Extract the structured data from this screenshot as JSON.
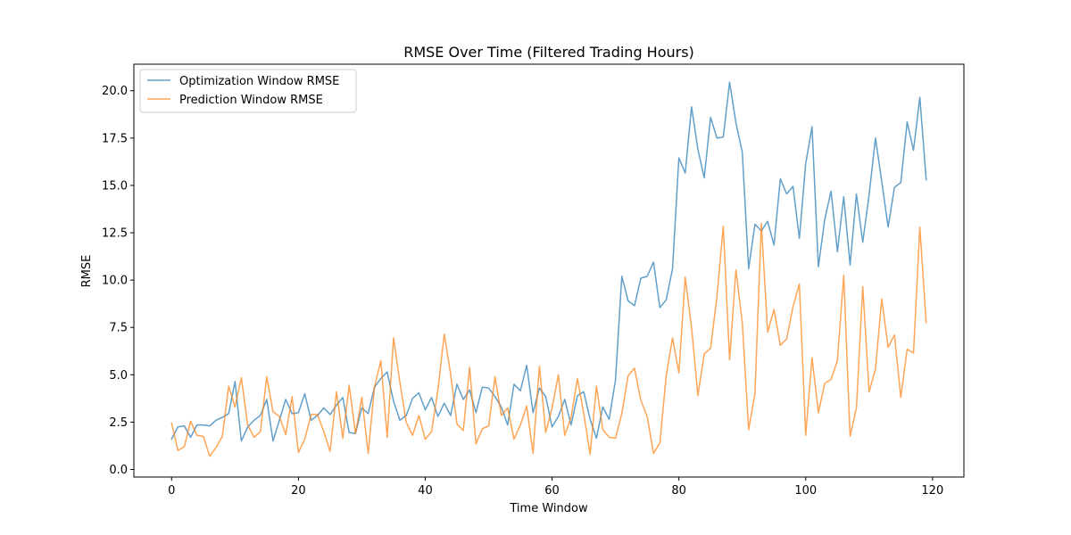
{
  "chart_data": {
    "type": "line",
    "title": "RMSE Over Time (Filtered Trading Hours)",
    "xlabel": "Time Window",
    "ylabel": "RMSE",
    "xlim": [
      -5.95,
      124.95
    ],
    "ylim": [
      -0.4,
      21.4
    ],
    "xticks": [
      0,
      20,
      40,
      60,
      80,
      100,
      120
    ],
    "yticks": [
      0.0,
      2.5,
      5.0,
      7.5,
      10.0,
      12.5,
      15.0,
      17.5,
      20.0
    ],
    "ytick_labels": [
      "0.0",
      "2.5",
      "5.0",
      "7.5",
      "10.0",
      "12.5",
      "15.0",
      "17.5",
      "20.0"
    ],
    "grid": false,
    "legend_position": "top-left",
    "x": [
      0,
      1,
      2,
      3,
      4,
      5,
      6,
      7,
      8,
      9,
      10,
      11,
      12,
      13,
      14,
      15,
      16,
      17,
      18,
      19,
      20,
      21,
      22,
      23,
      24,
      25,
      26,
      27,
      28,
      29,
      30,
      31,
      32,
      33,
      34,
      35,
      36,
      37,
      38,
      39,
      40,
      41,
      42,
      43,
      44,
      45,
      46,
      47,
      48,
      49,
      50,
      51,
      52,
      53,
      54,
      55,
      56,
      57,
      58,
      59,
      60,
      61,
      62,
      63,
      64,
      65,
      66,
      67,
      68,
      69,
      70,
      71,
      72,
      73,
      74,
      75,
      76,
      77,
      78,
      79,
      80,
      81,
      82,
      83,
      84,
      85,
      86,
      87,
      88,
      89,
      90,
      91,
      92,
      93,
      94,
      95,
      96,
      97,
      98,
      99,
      100,
      101,
      102,
      103,
      104,
      105,
      106,
      107,
      108,
      109,
      110,
      111,
      112,
      113,
      114,
      115,
      116,
      117,
      118,
      119
    ],
    "series": [
      {
        "name": "Optimization Window RMSE",
        "color": "#1f77b4",
        "values": [
          1.6,
          2.25,
          2.3,
          1.7,
          2.35,
          2.35,
          2.3,
          2.6,
          2.75,
          2.95,
          4.65,
          1.5,
          2.25,
          2.6,
          2.85,
          3.7,
          1.5,
          2.6,
          3.7,
          2.95,
          3.0,
          4.0,
          2.6,
          2.85,
          3.25,
          2.9,
          3.4,
          3.8,
          1.95,
          1.9,
          3.25,
          2.95,
          4.35,
          4.8,
          5.15,
          3.6,
          2.6,
          2.85,
          3.75,
          4.05,
          3.15,
          3.8,
          2.8,
          3.5,
          2.85,
          4.5,
          3.7,
          4.2,
          3.0,
          4.35,
          4.3,
          3.85,
          3.3,
          2.35,
          4.5,
          4.15,
          5.5,
          3.0,
          4.3,
          3.85,
          2.25,
          2.8,
          3.7,
          2.35,
          3.9,
          4.1,
          2.65,
          1.65,
          3.3,
          2.65,
          4.7,
          10.2,
          8.9,
          8.65,
          10.1,
          10.2,
          10.95,
          8.55,
          8.95,
          10.6,
          16.45,
          15.65,
          19.15,
          16.9,
          15.4,
          18.6,
          17.5,
          17.55,
          20.45,
          18.3,
          16.75,
          10.6,
          12.95,
          12.6,
          13.1,
          11.85,
          15.35,
          14.55,
          14.95,
          12.2,
          16.15,
          18.1,
          10.7,
          13.2,
          14.7,
          11.5,
          14.4,
          10.8,
          14.55,
          12.0,
          14.5,
          17.5,
          15.2,
          12.8,
          14.9,
          15.15,
          18.35,
          16.85,
          19.65,
          15.3
        ]
      },
      {
        "name": "Prediction Window RMSE",
        "color": "#ff7f0e",
        "values": [
          2.45,
          1.0,
          1.2,
          2.55,
          1.8,
          1.75,
          0.7,
          1.15,
          1.75,
          4.4,
          3.3,
          4.85,
          2.35,
          1.7,
          2.0,
          4.9,
          3.05,
          2.8,
          1.85,
          3.85,
          0.9,
          1.6,
          2.9,
          2.9,
          2.0,
          0.95,
          4.1,
          1.65,
          4.45,
          1.9,
          3.8,
          0.85,
          4.35,
          5.75,
          1.7,
          6.95,
          4.6,
          2.5,
          1.8,
          2.85,
          1.6,
          2.0,
          4.2,
          7.15,
          5.05,
          2.4,
          2.05,
          5.4,
          1.35,
          2.15,
          2.3,
          4.9,
          2.85,
          3.25,
          1.6,
          2.35,
          3.35,
          0.85,
          5.45,
          1.95,
          3.25,
          5.0,
          1.8,
          2.75,
          4.8,
          2.95,
          0.8,
          4.4,
          2.1,
          1.7,
          1.65,
          2.95,
          4.95,
          5.35,
          3.65,
          2.8,
          0.85,
          1.4,
          4.95,
          6.95,
          5.1,
          10.15,
          7.5,
          3.9,
          6.1,
          6.4,
          9.1,
          12.85,
          5.8,
          10.55,
          7.75,
          2.1,
          4.0,
          13.0,
          7.25,
          8.45,
          6.55,
          6.9,
          8.6,
          9.8,
          1.8,
          5.9,
          3.0,
          4.55,
          4.75,
          5.75,
          10.25,
          1.75,
          3.25,
          9.65,
          4.1,
          5.3,
          9.0,
          6.45,
          7.1,
          3.8,
          6.35,
          6.15,
          12.8,
          7.75
        ]
      }
    ]
  }
}
